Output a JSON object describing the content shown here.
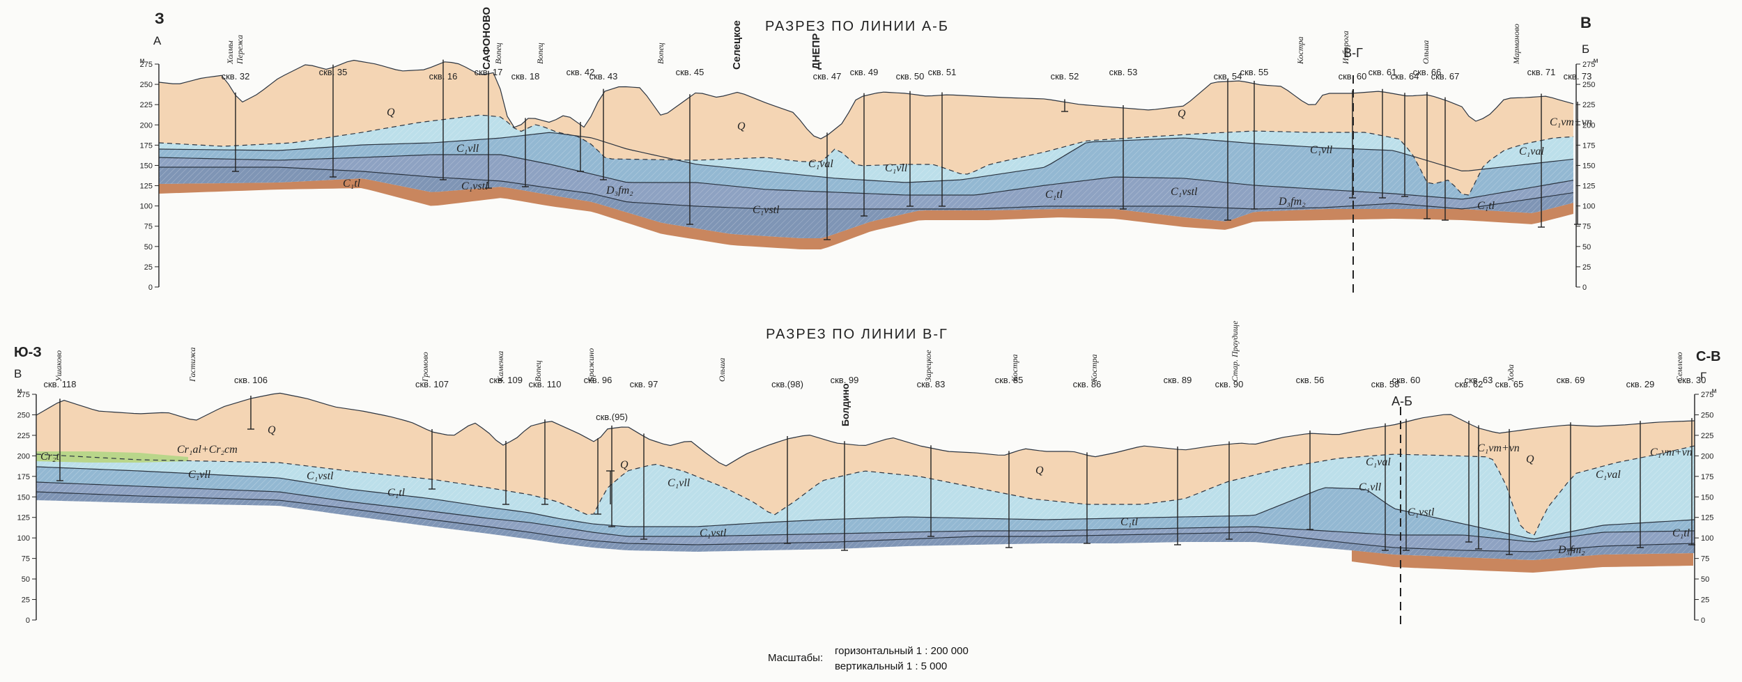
{
  "palette": {
    "quaternary": "#f4d5b4",
    "c1_upper_light": "#bcdfea",
    "c1_mid": "#93b8d2",
    "c1_lower": "#8ea2c2",
    "c1_tl": "#7f95b5",
    "d3_fm": "#c9865e",
    "cretaceous": "#b9d68a",
    "surface_line": "#333333"
  },
  "section1": {
    "title": "РАЗРЕЗ ПО ЛИНИИ А-Б",
    "corner_left": "З",
    "corner_right": "В",
    "end_left": "А",
    "end_right": "Б",
    "crossing_label": "В-Г",
    "unit": "м",
    "ticks": [
      "275",
      "250",
      "225",
      "200",
      "175",
      "150",
      "125",
      "100",
      "75",
      "50",
      "25",
      "0"
    ],
    "boreholes": [
      "скв. 32",
      "скв. 35",
      "скв. 16",
      "скв. 17",
      "скв. 18",
      "скв. 42",
      "скв. 43",
      "скв. 45",
      "скв. 47",
      "скв. 49",
      "скв. 50",
      "скв. 51",
      "скв. 52",
      "скв. 53",
      "скв. 54",
      "скв. 55",
      "скв. 60",
      "скв. 61",
      "скв. 64",
      "скв. 66",
      "скв. 67",
      "скв. 71",
      "скв. 73"
    ],
    "places": [
      "Холмы",
      "Пережа",
      "САФОНОВО",
      "Вопец",
      "Вопец",
      "Вопец",
      "Селецкое",
      "ДНЕПР",
      "Костра",
      "Изборога",
      "Ольша",
      "Марманово"
    ],
    "layers": [
      "Q",
      "Q",
      "Q",
      "C₁vll",
      "C₁vstl",
      "C₁tl",
      "C₁val",
      "C₁vll",
      "D₃fm₂",
      "C₁vstl",
      "C₁tl",
      "C₁vstl",
      "C₁val",
      "C₁vll",
      "D₃fm₂",
      "C₁tl",
      "C₁val",
      "C₁vm+vn"
    ]
  },
  "section2": {
    "title": "РАЗРЕЗ ПО ЛИНИИ В-Г",
    "corner_left": "Ю-З",
    "corner_right": "С-В",
    "end_left": "В",
    "end_right": "Г",
    "crossing_label": "А-Б",
    "unit": "м",
    "ticks": [
      "275",
      "250",
      "225",
      "200",
      "175",
      "150",
      "125",
      "100",
      "75",
      "50",
      "25",
      "0"
    ],
    "boreholes": [
      "скв. 118",
      "скв. 106",
      "скв. 107",
      "скв. 109",
      "скв. 110",
      "скв. 96",
      "скв. 97",
      "скв.(95)",
      "скв.(98)",
      "скв. 99",
      "скв. 83",
      "скв. 85",
      "скв. 86",
      "скв. 89",
      "скв. 90",
      "скв. 56",
      "скв. 58",
      "скв. 60",
      "скв. 62",
      "скв. 63",
      "скв. 65",
      "скв. 69",
      "скв. 29",
      "скв. 30"
    ],
    "places": [
      "Ушаково",
      "Гастижа",
      "Громово",
      "Каменка",
      "Вопец",
      "Бражино",
      "Ольша",
      "Болдино",
      "Зарецкое",
      "Костра",
      "Костра",
      "Стар. Праудище",
      "Хода",
      "Семлево"
    ],
    "layers": [
      "Q",
      "Q",
      "Q",
      "Q",
      "Cr₂t",
      "Cr₁al+Cr₂cm",
      "C₁vll",
      "C₁vstl",
      "C₁tl",
      "C₁vll",
      "C₁vstl",
      "C₁tl",
      "C₁val",
      "C₁vll",
      "C₁vstl",
      "C₁vm+vn",
      "C₁val",
      "C₁vm+vn",
      "D₃fm₂",
      "C₁tl"
    ]
  },
  "scales": {
    "label": "Масштабы:",
    "horizontal": "горизонтальный 1 : 200 000",
    "vertical": "вертикальный 1 : 5 000"
  }
}
